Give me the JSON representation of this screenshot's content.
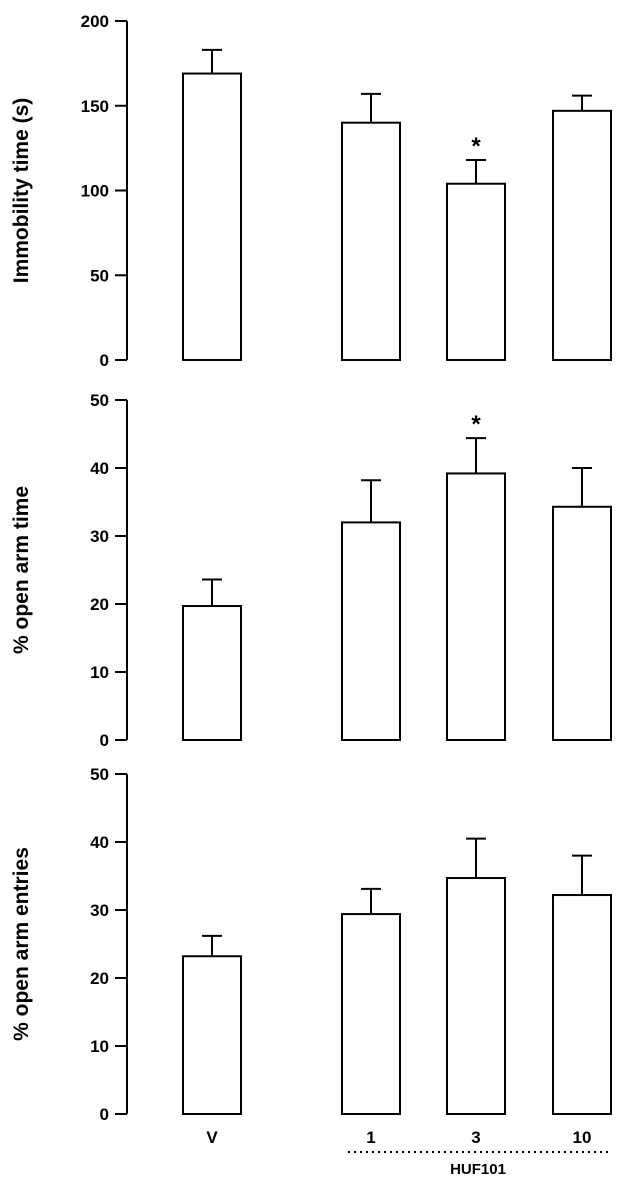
{
  "chart_data": [
    {
      "type": "bar",
      "ylabel": "Immobility time (s)",
      "ylim": [
        0,
        200
      ],
      "yticks": [
        0,
        50,
        100,
        150,
        200
      ],
      "categories": [
        "V",
        "1",
        "3",
        "10"
      ],
      "values": [
        169,
        140,
        104,
        147
      ],
      "errors": [
        14,
        17,
        14,
        9
      ],
      "annotations": [
        "",
        "",
        "*",
        ""
      ],
      "bar_color": "#ffffff",
      "grid": false
    },
    {
      "type": "bar",
      "ylabel": "% open arm time",
      "ylim": [
        0,
        50
      ],
      "yticks": [
        0,
        10,
        20,
        30,
        40,
        50
      ],
      "categories": [
        "V",
        "1",
        "3",
        "10"
      ],
      "values": [
        19.7,
        32,
        39.2,
        34.3
      ],
      "errors": [
        3.9,
        6.2,
        5.2,
        5.7
      ],
      "annotations": [
        "",
        "",
        "*",
        ""
      ],
      "bar_color": "#ffffff",
      "grid": false
    },
    {
      "type": "bar",
      "ylabel": "% open arm entries",
      "ylim": [
        0,
        50
      ],
      "yticks": [
        0,
        10,
        20,
        30,
        40,
        50
      ],
      "categories": [
        "V",
        "1",
        "3",
        "10"
      ],
      "values": [
        23.2,
        29.4,
        34.7,
        32.2
      ],
      "errors": [
        3,
        3.7,
        5.8,
        5.8
      ],
      "annotations": [
        "",
        "",
        "",
        ""
      ],
      "bar_color": "#ffffff",
      "grid": false
    }
  ],
  "x_group_label": "HUF101",
  "x_group_members": [
    "1",
    "3",
    "10"
  ]
}
